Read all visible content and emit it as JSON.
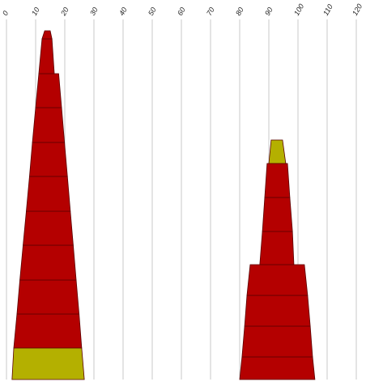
{
  "chart_data": {
    "type": "tapered-stack",
    "xlim": [
      0,
      120
    ],
    "xticks": [
      0,
      10,
      20,
      30,
      40,
      50,
      60,
      70,
      80,
      90,
      100,
      110,
      120
    ],
    "grid": true,
    "stacks": [
      {
        "segments": [
          {
            "color": "#b4b000",
            "bottom": [
              1.9,
              26.7
            ],
            "top": [
              2.5,
              25.8
            ]
          },
          {
            "color": "#b40000",
            "bottom": [
              2.5,
              25.8
            ],
            "top": [
              3.6,
              24.9
            ]
          },
          {
            "color": "#b40000",
            "bottom": [
              3.6,
              24.9
            ],
            "top": [
              4.6,
              23.9
            ]
          },
          {
            "color": "#b40000",
            "bottom": [
              4.6,
              23.9
            ],
            "top": [
              5.7,
              22.9
            ]
          },
          {
            "color": "#b40000",
            "bottom": [
              5.7,
              22.9
            ],
            "top": [
              6.8,
              21.9
            ]
          },
          {
            "color": "#b40000",
            "bottom": [
              6.8,
              21.9
            ],
            "top": [
              7.9,
              20.9
            ]
          },
          {
            "color": "#b40000",
            "bottom": [
              7.9,
              20.9
            ],
            "top": [
              8.9,
              19.9
            ]
          },
          {
            "color": "#b40000",
            "bottom": [
              8.9,
              19.9
            ],
            "top": [
              10.0,
              18.9
            ]
          },
          {
            "color": "#b40000",
            "bottom": [
              10.0,
              18.9
            ],
            "top": [
              11.1,
              17.9
            ]
          },
          {
            "color": "#b40000",
            "bottom": [
              11.1,
              16.4
            ],
            "top": [
              12.2,
              15.6
            ]
          },
          {
            "color": "#b40000",
            "bottom": [
              12.2,
              15.6
            ],
            "top": [
              13.1,
              15.0
            ]
          }
        ]
      },
      {
        "segments": [
          {
            "color": "#b40000",
            "bottom": [
              80.0,
              105.8
            ],
            "top": [
              80.8,
              105.0
            ]
          },
          {
            "color": "#b40000",
            "bottom": [
              80.8,
              105.0
            ],
            "top": [
              81.7,
              104.2
            ]
          },
          {
            "color": "#b40000",
            "bottom": [
              81.7,
              104.2
            ],
            "top": [
              82.5,
              103.3
            ]
          },
          {
            "color": "#b40000",
            "bottom": [
              82.5,
              103.3
            ],
            "top": [
              83.6,
              102.2
            ]
          },
          {
            "color": "#b40000",
            "bottom": [
              86.9,
              98.6
            ],
            "top": [
              87.8,
              98.1
            ]
          },
          {
            "color": "#b40000",
            "bottom": [
              87.8,
              98.1
            ],
            "top": [
              88.6,
              97.2
            ]
          },
          {
            "color": "#b40000",
            "bottom": [
              88.6,
              97.2
            ],
            "top": [
              89.4,
              96.4
            ]
          },
          {
            "color": "#b4b000",
            "bottom": [
              90.0,
              95.8
            ],
            "top": [
              90.8,
              94.7
            ]
          }
        ]
      }
    ]
  }
}
